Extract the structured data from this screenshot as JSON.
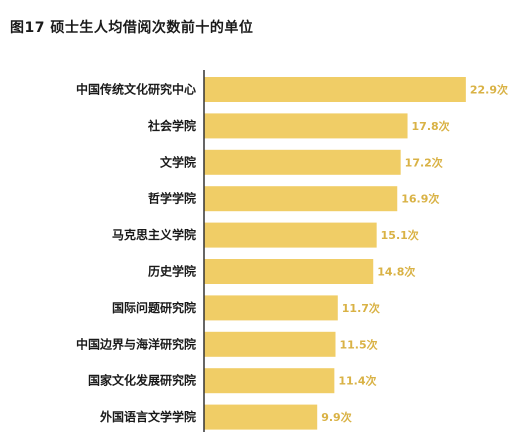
{
  "title": "图17  硕士生人均借阅次数前十的单位",
  "colors": {
    "bar": "#F0CD66",
    "value_label": "#D9B245",
    "axis": "#333333"
  },
  "chart_data": {
    "type": "bar",
    "orientation": "horizontal",
    "title": "图17  硕士生人均借阅次数前十的单位",
    "categories": [
      "中国传统文化研究中心",
      "社会学院",
      "文学院",
      "哲学学院",
      "马克思主义学院",
      "历史学院",
      "国际问题研究院",
      "中国边界与海洋研究院",
      "国家文化发展研究院",
      "外国语言文学学院"
    ],
    "values": [
      22.9,
      17.8,
      17.2,
      16.9,
      15.1,
      14.8,
      11.7,
      11.5,
      11.4,
      9.9
    ],
    "value_labels": [
      "22.9次",
      "17.8次",
      "17.2次",
      "16.9次",
      "15.1次",
      "14.8次",
      "11.7次",
      "11.5次",
      "11.4次",
      "9.9次"
    ],
    "xlim": [
      0,
      23
    ],
    "grid": false,
    "legend": "none"
  }
}
